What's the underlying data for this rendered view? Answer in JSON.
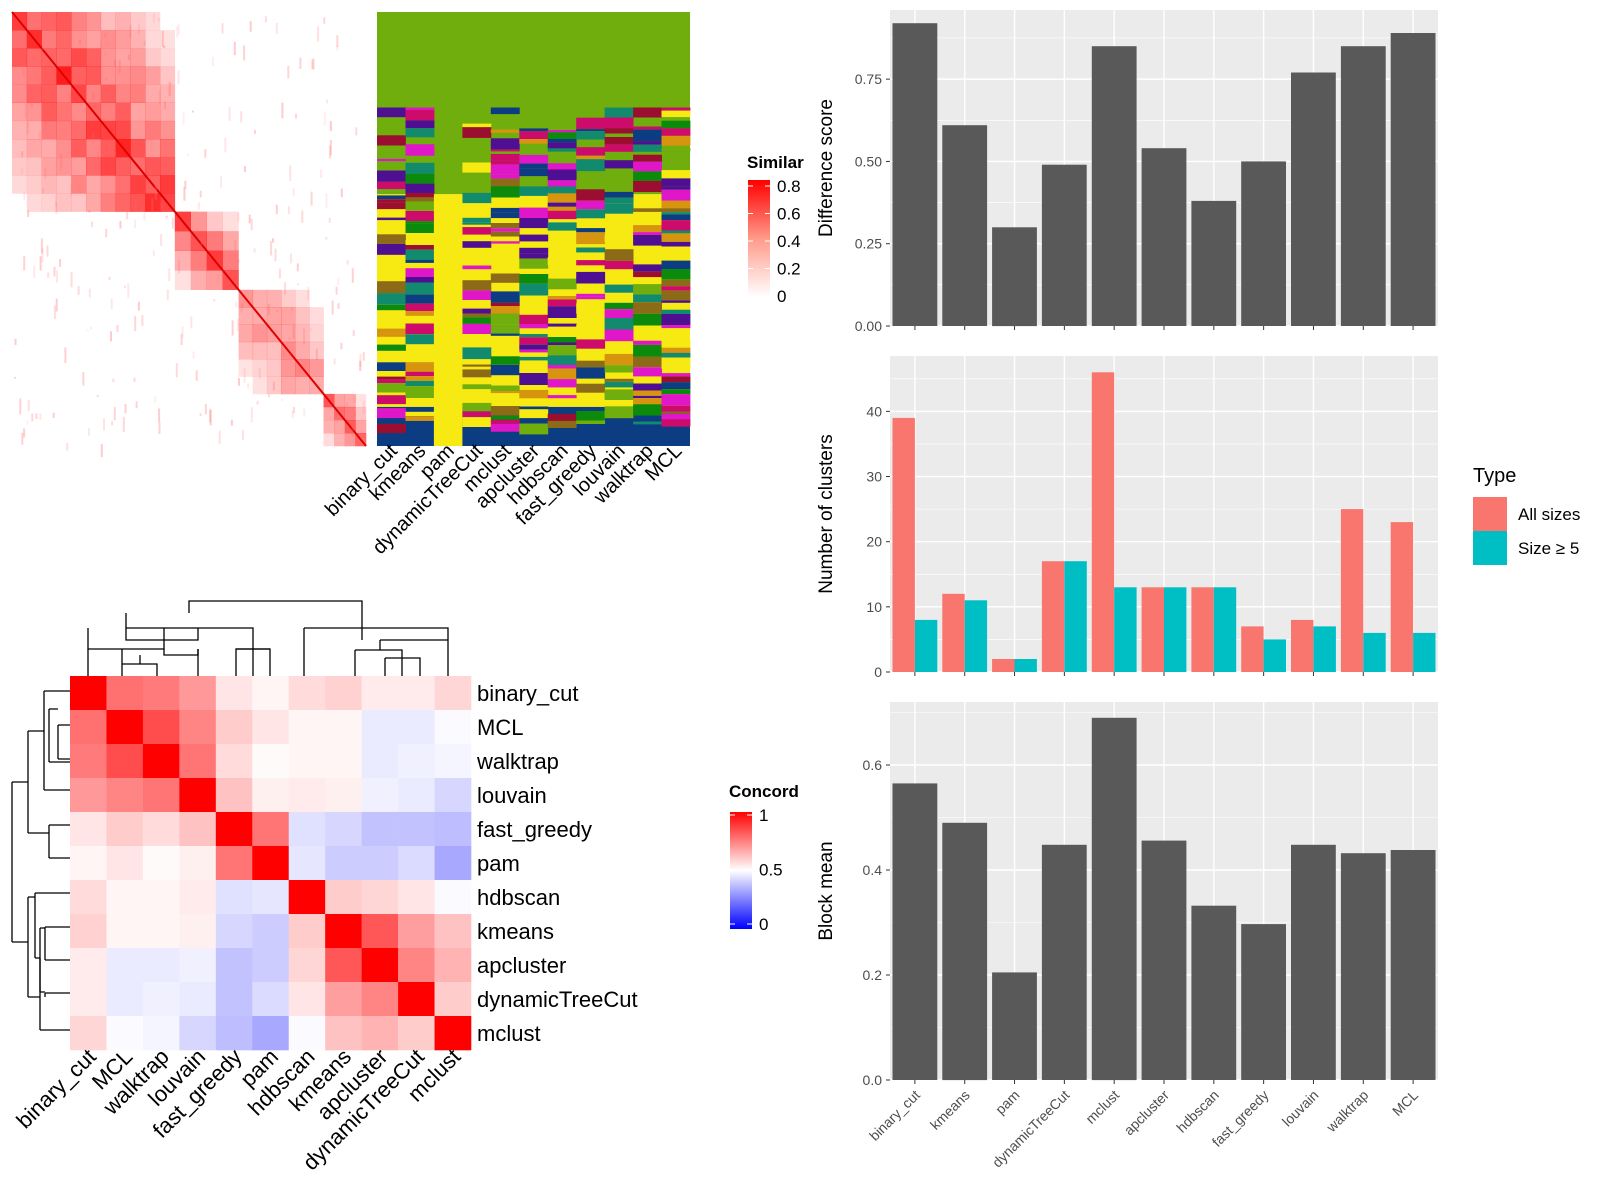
{
  "colors": {
    "panel_bg": "#ebebeb",
    "grid": "#ffffff",
    "bar_dark": "#595959",
    "all_sizes": "#f8766d",
    "size_ge5": "#00bfc4",
    "sim_high": "#ff0000",
    "conc_low": "#0000ff",
    "label_palette": [
      "#6fae0d",
      "#f7ea12",
      "#9b0e2f",
      "#0c8a0c",
      "#cc0b6a",
      "#0c3d82",
      "#d6940f",
      "#e017c9",
      "#118a6e",
      "#4f0f92",
      "#8c6b18"
    ]
  },
  "heatmap_similarity": {
    "legend_title": "Similar",
    "legend_ticks": [
      "0.8",
      "0.6",
      "0.4",
      "0.2",
      "0"
    ],
    "methods": [
      "binary_cut",
      "kmeans",
      "pam",
      "dynamicTreeCut",
      "mclust",
      "apcluster",
      "hdbscan",
      "fast_greedy",
      "louvain",
      "walktrap",
      "MCL"
    ]
  },
  "heatmap_concordance": {
    "legend_title": "Concord",
    "legend_ticks": [
      "1",
      "0.5",
      "0"
    ],
    "rows": [
      "binary_cut",
      "MCL",
      "walktrap",
      "louvain",
      "fast_greedy",
      "pam",
      "hdbscan",
      "kmeans",
      "apcluster",
      "dynamicTreeCut",
      "mclust"
    ],
    "cols": [
      "binary_cut",
      "MCL",
      "walktrap",
      "louvain",
      "fast_greedy",
      "pam",
      "hdbscan",
      "kmeans",
      "apcluster",
      "dynamicTreeCut",
      "mclust"
    ],
    "values": [
      [
        1.0,
        0.78,
        0.76,
        0.7,
        0.55,
        0.52,
        0.57,
        0.59,
        0.54,
        0.54,
        0.58
      ],
      [
        0.78,
        1.0,
        0.85,
        0.74,
        0.6,
        0.55,
        0.52,
        0.52,
        0.46,
        0.46,
        0.49
      ],
      [
        0.76,
        0.85,
        1.0,
        0.77,
        0.57,
        0.51,
        0.52,
        0.52,
        0.46,
        0.47,
        0.48
      ],
      [
        0.7,
        0.74,
        0.77,
        1.0,
        0.62,
        0.53,
        0.54,
        0.53,
        0.47,
        0.46,
        0.42
      ],
      [
        0.55,
        0.6,
        0.57,
        0.62,
        1.0,
        0.77,
        0.44,
        0.42,
        0.38,
        0.38,
        0.37
      ],
      [
        0.52,
        0.55,
        0.51,
        0.53,
        0.77,
        1.0,
        0.45,
        0.4,
        0.4,
        0.43,
        0.33
      ],
      [
        0.57,
        0.52,
        0.52,
        0.54,
        0.44,
        0.45,
        1.0,
        0.6,
        0.58,
        0.55,
        0.49
      ],
      [
        0.59,
        0.52,
        0.52,
        0.53,
        0.42,
        0.4,
        0.6,
        1.0,
        0.83,
        0.69,
        0.62
      ],
      [
        0.54,
        0.46,
        0.46,
        0.47,
        0.38,
        0.4,
        0.58,
        0.83,
        1.0,
        0.74,
        0.65
      ],
      [
        0.54,
        0.46,
        0.47,
        0.46,
        0.38,
        0.43,
        0.55,
        0.69,
        0.74,
        1.0,
        0.6
      ],
      [
        0.58,
        0.49,
        0.48,
        0.42,
        0.37,
        0.33,
        0.49,
        0.62,
        0.65,
        0.6,
        1.0
      ]
    ]
  },
  "chart_data": [
    {
      "type": "bar",
      "ylabel": "Difference score",
      "categories": [
        "binary_cut",
        "kmeans",
        "pam",
        "dynamicTreeCut",
        "mclust",
        "apcluster",
        "hdbscan",
        "fast_greedy",
        "louvain",
        "walktrap",
        "MCL"
      ],
      "values": [
        0.92,
        0.61,
        0.3,
        0.49,
        0.85,
        0.54,
        0.38,
        0.5,
        0.77,
        0.85,
        0.89
      ],
      "ylim": [
        0,
        0.96
      ],
      "yticks": [
        "0.00",
        "0.25",
        "0.50",
        "0.75"
      ],
      "ytick_values": [
        0,
        0.25,
        0.5,
        0.75
      ]
    },
    {
      "type": "bar",
      "ylabel": "Number of clusters",
      "categories": [
        "binary_cut",
        "kmeans",
        "pam",
        "dynamicTreeCut",
        "mclust",
        "apcluster",
        "hdbscan",
        "fast_greedy",
        "louvain",
        "walktrap",
        "MCL"
      ],
      "series": [
        {
          "name": "All sizes",
          "values": [
            39,
            12,
            2,
            17,
            46,
            13,
            13,
            7,
            8,
            25,
            23
          ]
        },
        {
          "name": "Size ≥ 5",
          "values": [
            8,
            11,
            2,
            17,
            13,
            13,
            13,
            5,
            7,
            6,
            6
          ]
        }
      ],
      "ylim": [
        0,
        48.5
      ],
      "yticks": [
        "0",
        "10",
        "20",
        "30",
        "40"
      ],
      "ytick_values": [
        0,
        10,
        20,
        30,
        40
      ],
      "legend_title": "Type"
    },
    {
      "type": "bar",
      "ylabel": "Block mean",
      "categories": [
        "binary_cut",
        "kmeans",
        "pam",
        "dynamicTreeCut",
        "mclust",
        "apcluster",
        "hdbscan",
        "fast_greedy",
        "louvain",
        "walktrap",
        "MCL"
      ],
      "values": [
        0.565,
        0.49,
        0.205,
        0.448,
        0.69,
        0.456,
        0.332,
        0.297,
        0.448,
        0.432,
        0.438
      ],
      "ylim": [
        0,
        0.72
      ],
      "yticks": [
        "0.0",
        "0.2",
        "0.4",
        "0.6"
      ],
      "ytick_values": [
        0,
        0.2,
        0.4,
        0.6
      ]
    }
  ]
}
